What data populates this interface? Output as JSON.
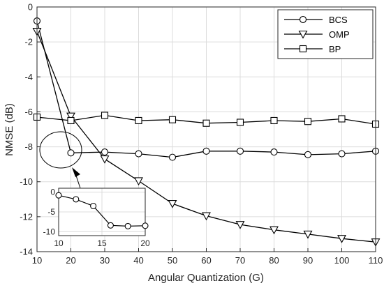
{
  "chart_data": {
    "type": "line",
    "xlabel": "Angular Quantization  (G)",
    "ylabel": "NMSE (dB)",
    "xlim": [
      10,
      110
    ],
    "ylim": [
      -14,
      0
    ],
    "xticks": [
      10,
      20,
      30,
      40,
      50,
      60,
      70,
      80,
      90,
      100,
      110
    ],
    "yticks": [
      0,
      -2,
      -4,
      -6,
      -8,
      -10,
      -12,
      -14
    ],
    "grid": true,
    "legend_position": "top-right",
    "series": [
      {
        "name": "BCS",
        "marker": "circle",
        "x": [
          10,
          20,
          30,
          40,
          50,
          60,
          70,
          80,
          90,
          100,
          110
        ],
        "y": [
          -0.8,
          -8.35,
          -8.3,
          -8.4,
          -8.6,
          -8.25,
          -8.25,
          -8.3,
          -8.45,
          -8.4,
          -8.25
        ]
      },
      {
        "name": "OMP",
        "marker": "triangle-down",
        "x": [
          10,
          20,
          30,
          40,
          50,
          60,
          70,
          80,
          90,
          100,
          110
        ],
        "y": [
          -1.4,
          -6.25,
          -8.7,
          -9.95,
          -11.25,
          -11.95,
          -12.45,
          -12.75,
          -13.0,
          -13.25,
          -13.45
        ]
      },
      {
        "name": "BP",
        "marker": "square",
        "x": [
          10,
          20,
          30,
          40,
          50,
          60,
          70,
          80,
          90,
          100,
          110
        ],
        "y": [
          -6.3,
          -6.5,
          -6.2,
          -6.5,
          -6.45,
          -6.65,
          -6.6,
          -6.5,
          -6.55,
          -6.4,
          -6.7
        ]
      }
    ],
    "inset": {
      "series_ref": "BCS",
      "x": [
        10,
        12,
        14,
        16,
        18,
        20
      ],
      "y": [
        -0.8,
        -1.8,
        -3.5,
        -8.4,
        -8.6,
        -8.5
      ],
      "xlim": [
        10,
        20
      ],
      "ylim": [
        -11,
        1
      ],
      "xticks": [
        10,
        15,
        20
      ],
      "yticks": [
        0,
        -5,
        -10
      ]
    }
  }
}
